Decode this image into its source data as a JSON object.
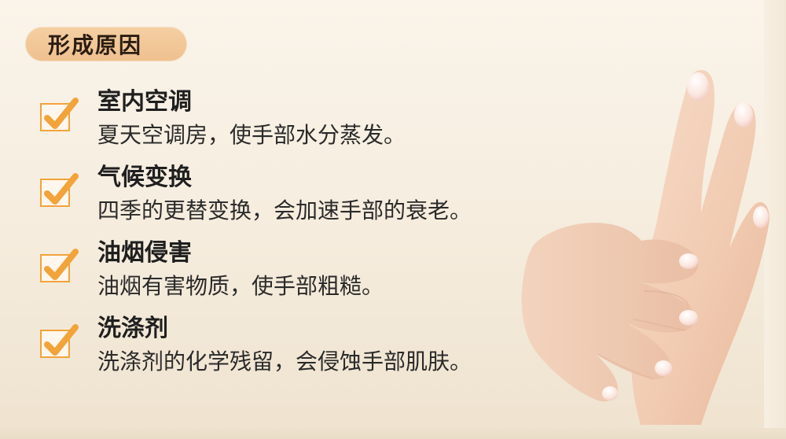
{
  "section": {
    "title": "形成原因"
  },
  "items": [
    {
      "title": "室内空调",
      "description": "夏天空调房，使手部水分蒸发。"
    },
    {
      "title": "气候变换",
      "description": "四季的更替变换，会加速手部的衰老。"
    },
    {
      "title": "油烟侵害",
      "description": "油烟有害物质，使手部粗糙。"
    },
    {
      "title": "洗涤剂",
      "description": "洗涤剂的化学残留，会侵蚀手部肌肤。"
    }
  ],
  "icons": {
    "checkmark": "check-icon",
    "illustration": "hands-illustration"
  },
  "colors": {
    "background": "#f5ecdd",
    "pill": "#f0c08e",
    "check": "#f2a33a",
    "text": "#1f1f1f"
  }
}
